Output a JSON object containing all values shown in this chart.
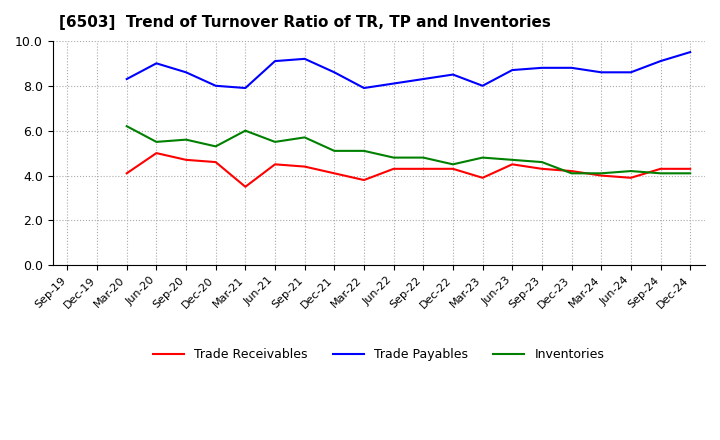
{
  "title": "[6503]  Trend of Turnover Ratio of TR, TP and Inventories",
  "x_labels": [
    "Sep-19",
    "Dec-19",
    "Mar-20",
    "Jun-20",
    "Sep-20",
    "Dec-20",
    "Mar-21",
    "Jun-21",
    "Sep-21",
    "Dec-21",
    "Mar-22",
    "Jun-22",
    "Sep-22",
    "Dec-22",
    "Mar-23",
    "Jun-23",
    "Sep-23",
    "Dec-23",
    "Mar-24",
    "Jun-24",
    "Sep-24",
    "Dec-24"
  ],
  "trade_receivables": [
    null,
    null,
    4.1,
    5.0,
    4.7,
    4.6,
    3.5,
    4.5,
    4.4,
    4.1,
    3.8,
    4.3,
    4.3,
    4.3,
    3.9,
    4.5,
    4.3,
    4.2,
    4.0,
    3.9,
    4.3,
    4.3
  ],
  "trade_payables": [
    null,
    null,
    8.3,
    9.0,
    8.6,
    8.0,
    7.9,
    9.1,
    9.2,
    8.6,
    7.9,
    8.1,
    8.3,
    8.5,
    8.0,
    8.7,
    8.8,
    8.8,
    8.6,
    8.6,
    9.1,
    9.5
  ],
  "inventories": [
    null,
    null,
    6.2,
    5.5,
    5.6,
    5.3,
    6.0,
    5.5,
    5.7,
    5.1,
    5.1,
    4.8,
    4.8,
    4.5,
    4.8,
    4.7,
    4.6,
    4.1,
    4.1,
    4.2,
    4.1,
    4.1
  ],
  "ylim": [
    0.0,
    10.0
  ],
  "yticks": [
    0.0,
    2.0,
    4.0,
    6.0,
    8.0,
    10.0
  ],
  "color_tr": "#ff0000",
  "color_tp": "#0000ff",
  "color_inv": "#008000",
  "background_color": "#ffffff",
  "grid_color": "#aaaaaa",
  "legend_labels": [
    "Trade Receivables",
    "Trade Payables",
    "Inventories"
  ]
}
